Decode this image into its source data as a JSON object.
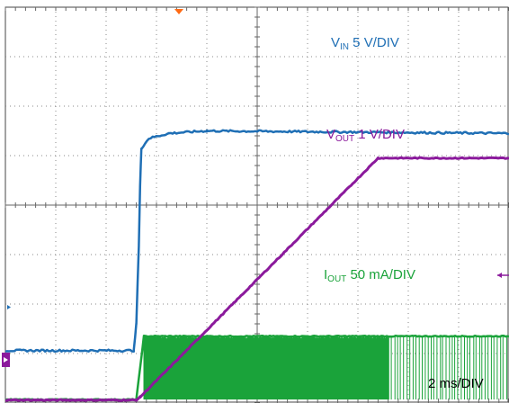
{
  "chart_data": {
    "type": "line",
    "x_unit": "ms",
    "x_range": [
      0,
      20
    ],
    "divisions": {
      "x": 10,
      "y": 8
    },
    "scale_label": "2 ms/DIV",
    "series": [
      {
        "name": "VIN",
        "label_main": "V",
        "label_sub": "IN",
        "label_scale": " 5 V/DIV",
        "color": "#1f6fb5",
        "x": [
          0,
          5.1,
          5.2,
          5.3,
          5.35,
          5.4,
          5.7,
          6.5,
          8,
          20
        ],
        "y": [
          1.06,
          1.06,
          1.6,
          3.2,
          4.4,
          5.15,
          5.35,
          5.45,
          5.5,
          5.45
        ]
      },
      {
        "name": "VOUT",
        "label_main": "V",
        "label_sub": "OUT",
        "label_scale": " 1 V/DIV",
        "color": "#8b1a9c",
        "x": [
          0,
          5.2,
          5.35,
          14.8,
          20
        ],
        "y": [
          0.06,
          0.06,
          0.12,
          4.95,
          4.95
        ]
      },
      {
        "name": "IOUT",
        "label_main": "I",
        "label_sub": "OUT",
        "label_scale": " 50 mA/DIV",
        "color": "#1aa33a",
        "x": [
          0,
          5.2,
          5.5,
          20
        ],
        "y": [
          0.07,
          0.07,
          1.35,
          1.35
        ],
        "noise_band": [
          0.07,
          1.35
        ],
        "dense_until": 15.2
      }
    ]
  },
  "markers": {
    "trigger_color": "#ff6a13",
    "left_channel_color": "#8b1a9c",
    "right_marker_color": "#8b1a9c"
  }
}
